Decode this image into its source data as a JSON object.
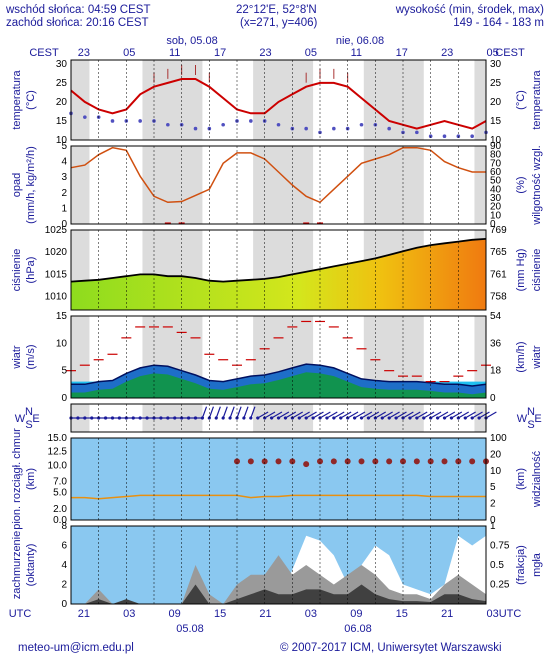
{
  "header": {
    "sunrise": "wschód słońca: 04:59 CEST",
    "sunset": "zachód słońca: 20:16 CEST",
    "coords": "22°12'E, 52°8'N",
    "grid": "(x=271, y=406)",
    "height_label": "wysokość (min, środek, max)",
    "height_values": "149 - 164 - 183 m"
  },
  "top_axis": {
    "tz_left": "CEST",
    "tz_right": "CEST",
    "day1": "sob, 05.08",
    "day2": "nie, 06.08",
    "hours": [
      "23",
      "05",
      "11",
      "17",
      "23",
      "05",
      "11",
      "17",
      "23",
      "05"
    ]
  },
  "bottom_axis": {
    "tz_left": "UTC",
    "tz_right": "UTC",
    "hours": [
      "21",
      "03",
      "09",
      "15",
      "21",
      "03",
      "09",
      "15",
      "21",
      "03"
    ],
    "date1": "05.08",
    "date2": "06.08"
  },
  "footer": {
    "email": "meteo-um@icm.edu.pl",
    "copyright": "© 2007-2017 ICM, Uniwersytet Warszawski"
  },
  "colors": {
    "text": "#1a1a9a",
    "temperature": "#cc0000",
    "dewpoint": "#5050c0",
    "pressure": "#000000",
    "humidity": "#d05010",
    "wind_max": "#cc0000",
    "cloud": "#c8c8c8",
    "fog": "#404040"
  },
  "panels": {
    "temp": {
      "left": "temperatura",
      "left_unit": "(°C)",
      "right": "temperatura",
      "right_unit": "(°C)"
    },
    "precip": {
      "left": "opad",
      "left_unit": "(mm/h, kg/m²/h)",
      "right": "wilgotność wzgl.",
      "right_unit": "(%)"
    },
    "press": {
      "left": "ciśnienie",
      "left_unit": "(hPa)",
      "right": "ciśnienie",
      "right_unit": "(mm Hg)"
    },
    "wind": {
      "left": "wiatr",
      "left_unit": "(m/s)",
      "right": "wiatr",
      "right_unit": "(km/h)"
    },
    "dir": {
      "compass": "WNES"
    },
    "vis": {
      "left": "pion. rozciągł. chmur",
      "left_unit": "(km)",
      "right": "widzialność",
      "right_unit": "(km)"
    },
    "cloud": {
      "left": "zachmurzenie",
      "left_unit": "(oktanty)",
      "right": "mgła",
      "right_unit": "(frakcja)"
    }
  },
  "chart_data": [
    {
      "type": "line",
      "name": "temperature",
      "x_hours": [
        0,
        3,
        6,
        9,
        12,
        15,
        18,
        21,
        24,
        27,
        30,
        33,
        36,
        39,
        42,
        45,
        48,
        51,
        54,
        57,
        60,
        63,
        66,
        69,
        72,
        75,
        78,
        81,
        84,
        87,
        90
      ],
      "temperature": [
        23,
        20,
        18,
        17,
        18,
        22,
        24,
        25,
        26,
        26,
        24,
        21,
        18,
        17,
        17,
        20,
        22,
        24,
        25,
        25,
        24,
        21,
        18,
        15,
        14,
        13,
        14,
        15,
        14,
        13,
        15
      ],
      "dewpoint": [
        17,
        16,
        16,
        15,
        15,
        15,
        15,
        14,
        14,
        13,
        13,
        14,
        15,
        15,
        15,
        14,
        13,
        13,
        12,
        13,
        13,
        14,
        14,
        13,
        12,
        12,
        11,
        11,
        11,
        11,
        12
      ],
      "ylim": [
        10,
        31
      ],
      "yticks_left": [
        10,
        15,
        20,
        25,
        30
      ],
      "yticks_right": [
        10,
        15,
        20,
        25,
        30
      ]
    },
    {
      "type": "line",
      "name": "precipitation_humidity",
      "x_hours": [
        0,
        3,
        6,
        9,
        12,
        15,
        18,
        21,
        24,
        27,
        30,
        33,
        36,
        39,
        42,
        45,
        48,
        51,
        54,
        57,
        60,
        63,
        66,
        69,
        72,
        75,
        78,
        81,
        84,
        87,
        90
      ],
      "humidity": [
        65,
        68,
        80,
        88,
        85,
        55,
        32,
        25,
        26,
        33,
        40,
        70,
        82,
        82,
        75,
        60,
        45,
        32,
        25,
        40,
        55,
        70,
        75,
        80,
        88,
        88,
        85,
        72,
        65,
        60,
        60
      ],
      "precip": [
        0,
        0,
        0,
        0,
        0,
        0,
        0,
        0.1,
        0.1,
        0,
        0,
        0,
        0,
        0,
        0,
        0,
        0,
        0.1,
        0.1,
        0,
        0,
        0,
        0,
        0,
        0,
        0,
        0,
        0,
        0,
        0,
        0
      ],
      "ylim_left": [
        0,
        5
      ],
      "yticks_left": [
        0,
        1,
        2,
        3,
        4,
        5
      ],
      "ylim_right": [
        0,
        90
      ],
      "yticks_right": [
        0,
        10,
        20,
        30,
        40,
        50,
        60,
        70,
        80,
        90
      ]
    },
    {
      "type": "area",
      "name": "pressure",
      "x_hours": [
        0,
        3,
        6,
        9,
        12,
        15,
        18,
        21,
        24,
        27,
        30,
        33,
        36,
        39,
        42,
        45,
        48,
        51,
        54,
        57,
        60,
        63,
        66,
        69,
        72,
        75,
        78,
        81,
        84,
        87,
        90
      ],
      "pressure": [
        1013.4,
        1013.6,
        1013.8,
        1014.2,
        1014.6,
        1015.0,
        1015.0,
        1014.6,
        1014.6,
        1014.2,
        1013.6,
        1013.4,
        1013.6,
        1013.8,
        1014.0,
        1014.4,
        1015.0,
        1015.6,
        1016.2,
        1016.8,
        1017.4,
        1018.0,
        1018.6,
        1019.4,
        1020.2,
        1021.0,
        1021.6,
        1022.0,
        1022.4,
        1022.8,
        1023.0
      ],
      "ylim_left": [
        1007,
        1025
      ],
      "yticks_left": [
        1010,
        1015,
        1020,
        1025
      ],
      "yticks_right": [
        758,
        761,
        765,
        769
      ]
    },
    {
      "type": "area",
      "name": "wind",
      "x_hours": [
        0,
        3,
        6,
        9,
        12,
        15,
        18,
        21,
        24,
        27,
        30,
        33,
        36,
        39,
        42,
        45,
        48,
        51,
        54,
        57,
        60,
        63,
        66,
        69,
        72,
        75,
        78,
        81,
        84,
        87,
        90
      ],
      "wind_mean": [
        2.5,
        2.5,
        3.0,
        3.2,
        4.5,
        5.5,
        6.0,
        5.8,
        5.0,
        4.2,
        3.2,
        3.0,
        3.5,
        4.0,
        4.2,
        4.8,
        5.5,
        6.2,
        6.0,
        5.5,
        4.5,
        3.5,
        3.2,
        3.0,
        3.0,
        3.0,
        2.8,
        2.5,
        2.5,
        2.2,
        2.5
      ],
      "wind_max": [
        5,
        6,
        7,
        8,
        11,
        13,
        13,
        13,
        12,
        11,
        8,
        7,
        6,
        7,
        9,
        11,
        13,
        14,
        14,
        13,
        11,
        9,
        7,
        5,
        4,
        4,
        3,
        3,
        4,
        5,
        6
      ],
      "ylim_left": [
        0,
        15
      ],
      "yticks_left": [
        0,
        5,
        10,
        15
      ],
      "yticks_right": [
        0,
        18,
        36,
        54
      ]
    },
    {
      "type": "scatter",
      "name": "cloud_extent_visibility",
      "x_hours": [
        0,
        3,
        6,
        9,
        12,
        15,
        18,
        21,
        24,
        27,
        30,
        33,
        36,
        39,
        42,
        45,
        48,
        51,
        54,
        57,
        60,
        63,
        66,
        69,
        72,
        75,
        78,
        81,
        84,
        87,
        90
      ],
      "visibility": [
        20,
        20,
        19,
        20,
        21,
        22,
        22,
        22,
        22,
        22,
        22,
        22,
        22,
        20,
        21,
        21,
        22,
        22,
        22,
        22,
        22,
        22,
        22,
        22,
        22,
        22,
        21,
        21,
        21,
        21,
        21
      ],
      "cloud_extent": [
        0,
        0,
        0,
        0,
        0,
        0,
        0,
        0,
        0,
        0,
        0,
        0,
        10,
        10,
        10,
        10,
        10,
        9.5,
        10,
        10,
        10,
        10,
        10,
        10,
        10,
        10,
        10,
        10,
        10,
        10,
        10
      ],
      "ylim_left": [
        0,
        15
      ],
      "yticks_left": [
        0.0,
        2.0,
        5.0,
        7.0,
        10.0,
        12.5,
        15.0
      ],
      "yticks_right": [
        0,
        2,
        5,
        10,
        20,
        100
      ]
    },
    {
      "type": "area",
      "name": "cloudiness",
      "x_hours": [
        0,
        3,
        6,
        9,
        12,
        15,
        18,
        21,
        24,
        27,
        30,
        33,
        36,
        39,
        42,
        45,
        48,
        51,
        54,
        57,
        60,
        63,
        66,
        69,
        72,
        75,
        78,
        81,
        84,
        87,
        90
      ],
      "high_cloud": [
        0,
        0,
        0,
        0,
        0,
        0,
        0,
        0,
        0,
        0,
        0,
        0,
        0,
        0,
        0,
        0,
        3.5,
        7.0,
        6.5,
        5,
        2,
        4,
        6,
        5,
        2,
        1.5,
        1,
        2,
        7,
        6,
        7
      ],
      "mid_cloud": [
        0,
        0,
        1.5,
        0,
        0,
        0,
        0,
        0,
        0,
        4,
        1,
        0,
        2,
        3,
        3,
        5,
        3,
        4,
        3,
        2,
        3,
        4,
        3,
        1.5,
        1,
        1,
        0.5,
        2,
        3,
        2,
        1
      ],
      "low_cloud": [
        0,
        0,
        0.5,
        0,
        0.5,
        0,
        0,
        0,
        0,
        2,
        0,
        0,
        0.5,
        1,
        1.5,
        1,
        1,
        1.5,
        1.5,
        1,
        1,
        2,
        1,
        0.5,
        0.3,
        0.3,
        0.2,
        1,
        1,
        0.5,
        0.3
      ],
      "fog": [
        0,
        0,
        0,
        0,
        0,
        0,
        0,
        0,
        0,
        0,
        0,
        0,
        0,
        0,
        0,
        0,
        0,
        0,
        0,
        0,
        0,
        0,
        0,
        0,
        0,
        0,
        0,
        0,
        0,
        0,
        0
      ],
      "ylim_left": [
        0,
        8
      ],
      "yticks_left": [
        0,
        2,
        4,
        6,
        8
      ],
      "yticks_right": [
        0,
        0.25,
        0.5,
        0.75,
        1
      ]
    }
  ]
}
